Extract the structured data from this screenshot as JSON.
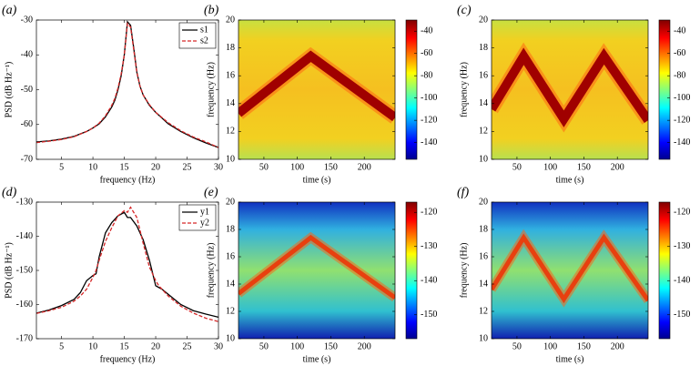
{
  "chart_data": [
    {
      "type": "line",
      "panel_label": "(a)",
      "xlabel": "frequency (Hz)",
      "ylabel": "PSD (dB Hz⁻¹)",
      "xlim": [
        1,
        30
      ],
      "ylim": [
        -70,
        -30
      ],
      "xticks": [
        5,
        10,
        15,
        20,
        25,
        30
      ],
      "yticks": [
        -70,
        -60,
        -50,
        -40,
        -30
      ],
      "legend": "upper right",
      "x": [
        1,
        3,
        5,
        7,
        9,
        10,
        11,
        12,
        13,
        13.5,
        14,
        14.5,
        15,
        15.5,
        16,
        16.5,
        17,
        17.5,
        18,
        19,
        20,
        22,
        24,
        26,
        28,
        30
      ],
      "series": [
        {
          "name": "s1",
          "color": "#000000",
          "linestyle": "solid",
          "values": [
            -65,
            -64.7,
            -64.2,
            -63.4,
            -62,
            -61,
            -59.8,
            -57.8,
            -55,
            -53,
            -50,
            -46,
            -40,
            -30.5,
            -31.5,
            -38,
            -45,
            -49,
            -51.5,
            -54.5,
            -56.5,
            -59.8,
            -62,
            -63.8,
            -65.3,
            -66.6
          ]
        },
        {
          "name": "s2",
          "color": "#d62728",
          "linestyle": "dashed",
          "values": [
            -65.2,
            -64.8,
            -64.3,
            -63.5,
            -62,
            -61,
            -59.6,
            -57.5,
            -54.5,
            -52.5,
            -49.5,
            -45.5,
            -40,
            -31,
            -32,
            -38.5,
            -45,
            -49,
            -51.5,
            -54.3,
            -56.5,
            -59.5,
            -61.8,
            -63.6,
            -65,
            -66.6
          ]
        }
      ]
    },
    {
      "type": "spectrogram",
      "panel_label": "(b)",
      "xlabel": "time (s)",
      "ylabel": "frequency (Hz)",
      "colormap": "jet",
      "xlim": [
        12,
        246
      ],
      "ylim": [
        10,
        20
      ],
      "xticks": [
        50,
        100,
        150,
        200
      ],
      "yticks": [
        10,
        12,
        14,
        16,
        18,
        20
      ],
      "clim": [
        -155,
        -30
      ],
      "cticks": [
        -140,
        -120,
        -100,
        -80,
        -60,
        -40
      ],
      "color": "#a00000",
      "x": [
        12,
        120,
        246
      ],
      "values": [
        13.3,
        17.4,
        13.0
      ]
    },
    {
      "type": "spectrogram",
      "panel_label": "(c)",
      "xlabel": "time (s)",
      "ylabel": "frequency (Hz)",
      "colormap": "jet",
      "xlim": [
        12,
        246
      ],
      "ylim": [
        10,
        20
      ],
      "xticks": [
        50,
        100,
        150,
        200
      ],
      "yticks": [
        10,
        12,
        14,
        16,
        18,
        20
      ],
      "clim": [
        -155,
        -30
      ],
      "cticks": [
        -140,
        -120,
        -100,
        -80,
        -60,
        -40
      ],
      "color": "#a00000",
      "x": [
        12,
        60,
        120,
        180,
        246
      ],
      "values": [
        13.6,
        17.4,
        12.9,
        17.4,
        12.8
      ]
    },
    {
      "type": "line",
      "panel_label": "(d)",
      "xlabel": "frequency (Hz)",
      "ylabel": "PSD (dB Hz⁻¹)",
      "xlim": [
        1,
        30
      ],
      "ylim": [
        -170,
        -130
      ],
      "xticks": [
        5,
        10,
        15,
        20,
        25,
        30
      ],
      "yticks": [
        -170,
        -160,
        -150,
        -140,
        -130
      ],
      "legend": "upper right",
      "x": [
        1,
        3,
        5,
        7,
        8,
        9,
        10,
        10.5,
        11,
        12,
        13,
        14,
        15,
        15.5,
        16,
        17,
        18,
        19,
        20,
        20.5,
        21,
        22,
        24,
        26,
        28,
        30
      ],
      "series": [
        {
          "name": "y1",
          "color": "#000000",
          "linestyle": "solid",
          "values": [
            -162.5,
            -161.6,
            -160.3,
            -158.5,
            -156.5,
            -153,
            -151.5,
            -151,
            -146,
            -139,
            -136,
            -134,
            -133,
            -134.5,
            -134.5,
            -137,
            -141,
            -147,
            -154.5,
            -155,
            -155.5,
            -157,
            -160,
            -161.8,
            -162.8,
            -163.7
          ]
        },
        {
          "name": "y2",
          "color": "#d62728",
          "linestyle": "dashed",
          "values": [
            -162.6,
            -161.8,
            -160.8,
            -159,
            -157.5,
            -155.5,
            -152,
            -150,
            -147,
            -141.5,
            -137.5,
            -134,
            -132.5,
            -133,
            -131.5,
            -134.5,
            -142,
            -149,
            -153,
            -154.5,
            -155.5,
            -157.5,
            -160.5,
            -162.5,
            -164,
            -165
          ]
        }
      ]
    },
    {
      "type": "spectrogram",
      "panel_label": "(e)",
      "xlabel": "time (s)",
      "ylabel": "frequency (Hz)",
      "colormap": "jet",
      "xlim": [
        12,
        246
      ],
      "ylim": [
        10,
        20
      ],
      "xticks": [
        50,
        100,
        150,
        200
      ],
      "yticks": [
        10,
        12,
        14,
        16,
        18,
        20
      ],
      "clim": [
        -157,
        -117
      ],
      "cticks": [
        -150,
        -140,
        -130,
        -120
      ],
      "color": "#e8400f",
      "x": [
        12,
        120,
        246
      ],
      "values": [
        13.3,
        17.4,
        13.0
      ]
    },
    {
      "type": "spectrogram",
      "panel_label": "(f)",
      "xlabel": "time (s)",
      "ylabel": "frequency (Hz)",
      "colormap": "jet",
      "xlim": [
        12,
        246
      ],
      "ylim": [
        10,
        20
      ],
      "xticks": [
        50,
        100,
        150,
        200
      ],
      "yticks": [
        10,
        12,
        14,
        16,
        18,
        20
      ],
      "clim": [
        -157,
        -117
      ],
      "cticks": [
        -150,
        -140,
        -130,
        -120
      ],
      "color": "#e8400f",
      "x": [
        12,
        60,
        120,
        180,
        246
      ],
      "values": [
        13.6,
        17.4,
        12.9,
        17.4,
        12.8
      ]
    }
  ]
}
